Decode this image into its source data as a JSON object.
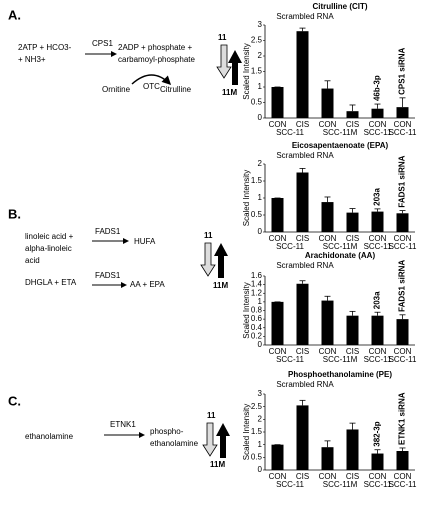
{
  "panels": {
    "a": {
      "label": "A.",
      "substrate_1": "2ATP + HCO3-",
      "substrate_2": "+ NH3+",
      "enzyme": "CPS1",
      "product_1": "2ADP + phosphate +",
      "product_2": "carbamoyl-phosphate",
      "ornithine": "Ornitine",
      "otc": "OTC",
      "citrulline": "Citrulline",
      "down_label": "11",
      "up_label": "11M"
    },
    "b": {
      "label": "B.",
      "substrate_1": "linoleic acid +",
      "substrate_2": "alpha-linoleic",
      "substrate_3": "acid",
      "enzyme_1": "FADS1",
      "product_1": "HUFA",
      "substrate_4": "DHGLA + ETA",
      "enzyme_2": "FADS1",
      "product_2": "AA + EPA",
      "down_label": "11",
      "up_label": "11M"
    },
    "c": {
      "label": "C.",
      "substrate": "ethanolamine",
      "enzyme": "ETNK1",
      "product_1": "phospho-",
      "product_2": "ethanolamine",
      "down_label": "11",
      "up_label": "11M"
    }
  },
  "chart_data": [
    {
      "type": "bar",
      "title": "Citrulline (CIT)",
      "subtitle": "Scrambled RNA",
      "y_label": "Scaled Intensity",
      "categories": [
        "CON",
        "CIS",
        "CON",
        "CIS",
        "CON",
        "CON"
      ],
      "groups": [
        "SCC-11",
        null,
        "SCC-11M",
        null,
        "SCC-11",
        "SCC-11"
      ],
      "values": [
        1.0,
        2.8,
        0.95,
        0.22,
        0.3,
        0.35
      ],
      "errors": [
        0,
        0.1,
        0.25,
        0.2,
        0.15,
        0.3
      ],
      "annotations": [
        "46b-3p",
        "CPS1 siRNA"
      ],
      "color": "#000000",
      "ylim": [
        0,
        3
      ],
      "yticks": [
        0,
        0.5,
        1,
        1.5,
        2,
        2.5,
        3
      ]
    },
    {
      "type": "bar",
      "title": "Eicosapentaenoate (EPA)",
      "subtitle": "Scrambled RNA",
      "y_label": "Scaled Intensity",
      "categories": [
        "CON",
        "CIS",
        "CON",
        "CIS",
        "CON",
        "CON"
      ],
      "groups": [
        "SCC-11",
        null,
        "SCC-11M",
        null,
        "SCC-11",
        "SCC-11"
      ],
      "values": [
        1.0,
        1.75,
        0.88,
        0.57,
        0.6,
        0.55
      ],
      "errors": [
        0,
        0.12,
        0.15,
        0.12,
        0.08,
        0.08
      ],
      "annotations": [
        "203a",
        "FADS1 siRNA"
      ],
      "color": "#000000",
      "ylim": [
        0,
        2
      ],
      "yticks": [
        0,
        0.5,
        1,
        1.5,
        2
      ]
    },
    {
      "type": "bar",
      "title": "Arachidonate (AA)",
      "subtitle": "Scrambled RNA",
      "y_label": "Scaled Intensity",
      "categories": [
        "CON",
        "CIS",
        "CON",
        "CIS",
        "CON",
        "CON"
      ],
      "groups": [
        "SCC-11",
        null,
        "SCC-11M",
        null,
        "SCC-11",
        "SCC-11"
      ],
      "values": [
        1.0,
        1.42,
        1.03,
        0.68,
        0.68,
        0.6
      ],
      "errors": [
        0,
        0.07,
        0.1,
        0.1,
        0.08,
        0.1
      ],
      "annotations": [
        "203a",
        "FADS1 siRNA"
      ],
      "color": "#000000",
      "ylim": [
        0,
        1.6
      ],
      "yticks": [
        0,
        0.2,
        0.4,
        0.6,
        0.8,
        1,
        1.2,
        1.4,
        1.6
      ]
    },
    {
      "type": "bar",
      "title": "Phosphoethanolamine (PE)",
      "subtitle": "Scrambled RNA",
      "y_label": "Scaled Intensity",
      "categories": [
        "CON",
        "CIS",
        "CON",
        "CIS",
        "CON",
        "CON"
      ],
      "groups": [
        "SCC-11",
        null,
        "SCC-11M",
        null,
        "SCC-11",
        "SCC-11"
      ],
      "values": [
        1.0,
        2.55,
        0.9,
        1.6,
        0.65,
        0.75
      ],
      "errors": [
        0,
        0.2,
        0.25,
        0.25,
        0.15,
        0.12
      ],
      "annotations": [
        "382-3p",
        "ETNK1 siRNA"
      ],
      "color": "#000000",
      "ylim": [
        0,
        3
      ],
      "yticks": [
        0,
        0.5,
        1,
        1.5,
        2,
        2.5,
        3
      ]
    }
  ]
}
